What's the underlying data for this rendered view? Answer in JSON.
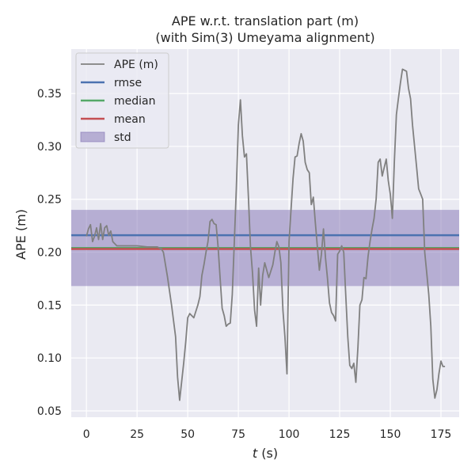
{
  "chart_data": {
    "type": "line",
    "title_line1": "APE w.r.t. translation part (m)",
    "title_line2": "(with Sim(3) Umeyama alignment)",
    "xlabel_var": "t",
    "xlabel_unit": " (s)",
    "ylabel": "APE (m)",
    "xlim": [
      -7.5,
      184
    ],
    "ylim": [
      0.044,
      0.392
    ],
    "xticks": [
      0,
      25,
      50,
      75,
      100,
      125,
      150,
      175
    ],
    "yticks": [
      0.05,
      0.1,
      0.15,
      0.2,
      0.25,
      0.3,
      0.35
    ],
    "ytick_labels": [
      "0.05",
      "0.10",
      "0.15",
      "0.20",
      "0.25",
      "0.30",
      "0.35"
    ],
    "grid": true,
    "legend_position": "top-left",
    "colors": {
      "background": "#eaeaf2",
      "ape": "#808080",
      "rmse": "#4c72b0",
      "median": "#55a868",
      "mean": "#c44e52",
      "std_fill": "#8172b3"
    },
    "stats": {
      "rmse": 0.216,
      "median": 0.204,
      "mean": 0.203,
      "std_low": 0.168,
      "std_high": 0.24
    },
    "legend": [
      {
        "key": "ape",
        "label": "APE (m)",
        "kind": "line"
      },
      {
        "key": "rmse",
        "label": "rmse",
        "kind": "line"
      },
      {
        "key": "median",
        "label": "median",
        "kind": "line"
      },
      {
        "key": "mean",
        "label": "mean",
        "kind": "line"
      },
      {
        "key": "std_fill",
        "label": "std",
        "kind": "patch"
      }
    ],
    "series": [
      {
        "key": "ape",
        "x": [
          0,
          1,
          2,
          3,
          4,
          5,
          6,
          7,
          8,
          9,
          10,
          11,
          12,
          13,
          15,
          20,
          25,
          30,
          35,
          37,
          38,
          40,
          42,
          44,
          45,
          46,
          48,
          49,
          50,
          51,
          53,
          55,
          56,
          57,
          58,
          59,
          60,
          61,
          62,
          63,
          64,
          65,
          66,
          67,
          68,
          69,
          70,
          71,
          72,
          73,
          74,
          75,
          76,
          77,
          78,
          79,
          80,
          81,
          82,
          83,
          84,
          85,
          86,
          87,
          88,
          90,
          92,
          93,
          94,
          95,
          96,
          97,
          98,
          99,
          100,
          101,
          102,
          103,
          104,
          105,
          106,
          107,
          108,
          109,
          110,
          111,
          112,
          113,
          114,
          115,
          116,
          117,
          118,
          119,
          120,
          121,
          122,
          123,
          124,
          125,
          126,
          127,
          128,
          129,
          130,
          131,
          132,
          133,
          134,
          135,
          136,
          137,
          138,
          139,
          140,
          141,
          142,
          143,
          144,
          145,
          146,
          147,
          148,
          149,
          150,
          151,
          152,
          153,
          154,
          155,
          156,
          157,
          158,
          159,
          160,
          161,
          162,
          163,
          164,
          165,
          166,
          167,
          168,
          169,
          170,
          171,
          172,
          173,
          174,
          175,
          176,
          177
        ],
        "y": [
          0.215,
          0.222,
          0.226,
          0.21,
          0.215,
          0.223,
          0.212,
          0.227,
          0.212,
          0.223,
          0.225,
          0.216,
          0.22,
          0.21,
          0.206,
          0.206,
          0.206,
          0.205,
          0.205,
          0.203,
          0.2,
          0.177,
          0.15,
          0.12,
          0.082,
          0.06,
          0.095,
          0.115,
          0.138,
          0.142,
          0.138,
          0.15,
          0.158,
          0.178,
          0.188,
          0.2,
          0.21,
          0.229,
          0.231,
          0.227,
          0.226,
          0.205,
          0.175,
          0.147,
          0.14,
          0.13,
          0.132,
          0.133,
          0.16,
          0.21,
          0.26,
          0.32,
          0.344,
          0.31,
          0.29,
          0.293,
          0.25,
          0.205,
          0.18,
          0.145,
          0.13,
          0.185,
          0.15,
          0.178,
          0.19,
          0.176,
          0.188,
          0.2,
          0.21,
          0.205,
          0.19,
          0.145,
          0.12,
          0.085,
          0.21,
          0.24,
          0.27,
          0.29,
          0.291,
          0.303,
          0.312,
          0.305,
          0.285,
          0.278,
          0.275,
          0.245,
          0.252,
          0.228,
          0.205,
          0.183,
          0.198,
          0.222,
          0.195,
          0.175,
          0.152,
          0.143,
          0.14,
          0.135,
          0.198,
          0.201,
          0.206,
          0.2,
          0.16,
          0.12,
          0.093,
          0.09,
          0.095,
          0.077,
          0.11,
          0.15,
          0.155,
          0.176,
          0.175,
          0.196,
          0.21,
          0.222,
          0.232,
          0.25,
          0.285,
          0.288,
          0.272,
          0.28,
          0.288,
          0.268,
          0.255,
          0.232,
          0.285,
          0.33,
          0.345,
          0.36,
          0.373,
          0.372,
          0.371,
          0.355,
          0.345,
          0.32,
          0.3,
          0.28,
          0.26,
          0.255,
          0.25,
          0.2,
          0.18,
          0.16,
          0.13,
          0.08,
          0.062,
          0.07,
          0.085,
          0.097,
          0.092,
          0.092
        ]
      }
    ]
  }
}
